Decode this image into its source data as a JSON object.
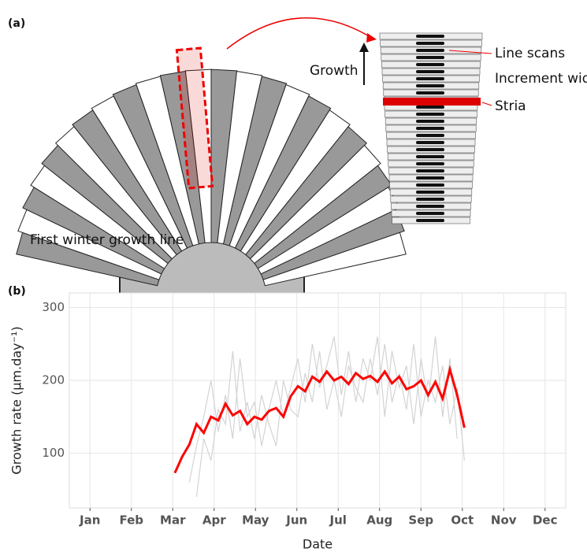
{
  "panel_a": {
    "label": "(a)",
    "growth": "Growth",
    "line_scans": "Line scans",
    "increment_width": "Increment width",
    "stria": "Stria",
    "first_winter": "First winter growth line"
  },
  "panel_b": {
    "label": "(b)"
  },
  "chart_data": {
    "type": "line",
    "ylabel": "Growth rate (µm.day⁻¹)",
    "xlabel": "Date",
    "x": [
      3.05,
      3.225,
      3.4,
      3.575,
      3.75,
      3.925,
      4.1,
      4.275,
      4.45,
      4.625,
      4.8,
      4.975,
      5.15,
      5.325,
      5.5,
      5.675,
      5.85,
      6.025,
      6.2,
      6.375,
      6.55,
      6.725,
      6.9,
      7.075,
      7.25,
      7.425,
      7.6,
      7.775,
      7.95,
      8.125,
      8.3,
      8.475,
      8.65,
      8.825,
      9.0,
      9.175,
      9.35,
      9.525,
      9.7,
      9.875,
      10.05
    ],
    "series": [
      {
        "color": "#d3d3d3",
        "values": [
          null,
          null,
          60,
          110,
          150,
          200,
          130,
          180,
          120,
          230,
          150,
          170,
          110,
          160,
          200,
          150,
          190,
          230,
          170,
          250,
          190,
          220,
          260,
          180,
          240,
          170,
          230,
          200,
          260,
          150,
          240,
          190,
          220,
          140,
          230,
          170,
          260,
          150,
          230,
          120,
          null
        ]
      },
      {
        "color": "#d3d3d3",
        "values": [
          null,
          null,
          null,
          40,
          120,
          90,
          160,
          140,
          240,
          130,
          170,
          120,
          180,
          140,
          110,
          200,
          160,
          150,
          210,
          170,
          240,
          160,
          200,
          150,
          220,
          190,
          170,
          230,
          180,
          250,
          170,
          210,
          160,
          250,
          150,
          200,
          170,
          220,
          140,
          190,
          90
        ]
      },
      {
        "color": "#ff0000",
        "values": [
          73,
          95,
          112,
          140,
          128,
          150,
          145,
          168,
          152,
          158,
          140,
          150,
          146,
          158,
          162,
          150,
          178,
          192,
          185,
          205,
          198,
          212,
          200,
          205,
          195,
          210,
          202,
          206,
          198,
          212,
          196,
          205,
          188,
          192,
          200,
          180,
          198,
          175,
          215,
          180,
          135
        ]
      }
    ],
    "xlim": [
      0.5,
      12.5
    ],
    "xticks": [
      {
        "value": 1,
        "label": "Jan"
      },
      {
        "value": 2,
        "label": "Feb"
      },
      {
        "value": 3,
        "label": "Mar"
      },
      {
        "value": 4,
        "label": "Apr"
      },
      {
        "value": 5,
        "label": "May"
      },
      {
        "value": 6,
        "label": "Jun"
      },
      {
        "value": 7,
        "label": "Jul"
      },
      {
        "value": 8,
        "label": "Aug"
      },
      {
        "value": 9,
        "label": "Sep"
      },
      {
        "value": 10,
        "label": "Oct"
      },
      {
        "value": 11,
        "label": "Nov"
      },
      {
        "value": 12,
        "label": "Dec"
      }
    ],
    "ylim": [
      25,
      320
    ],
    "yticks": [
      100,
      200,
      300
    ],
    "grid": true
  }
}
